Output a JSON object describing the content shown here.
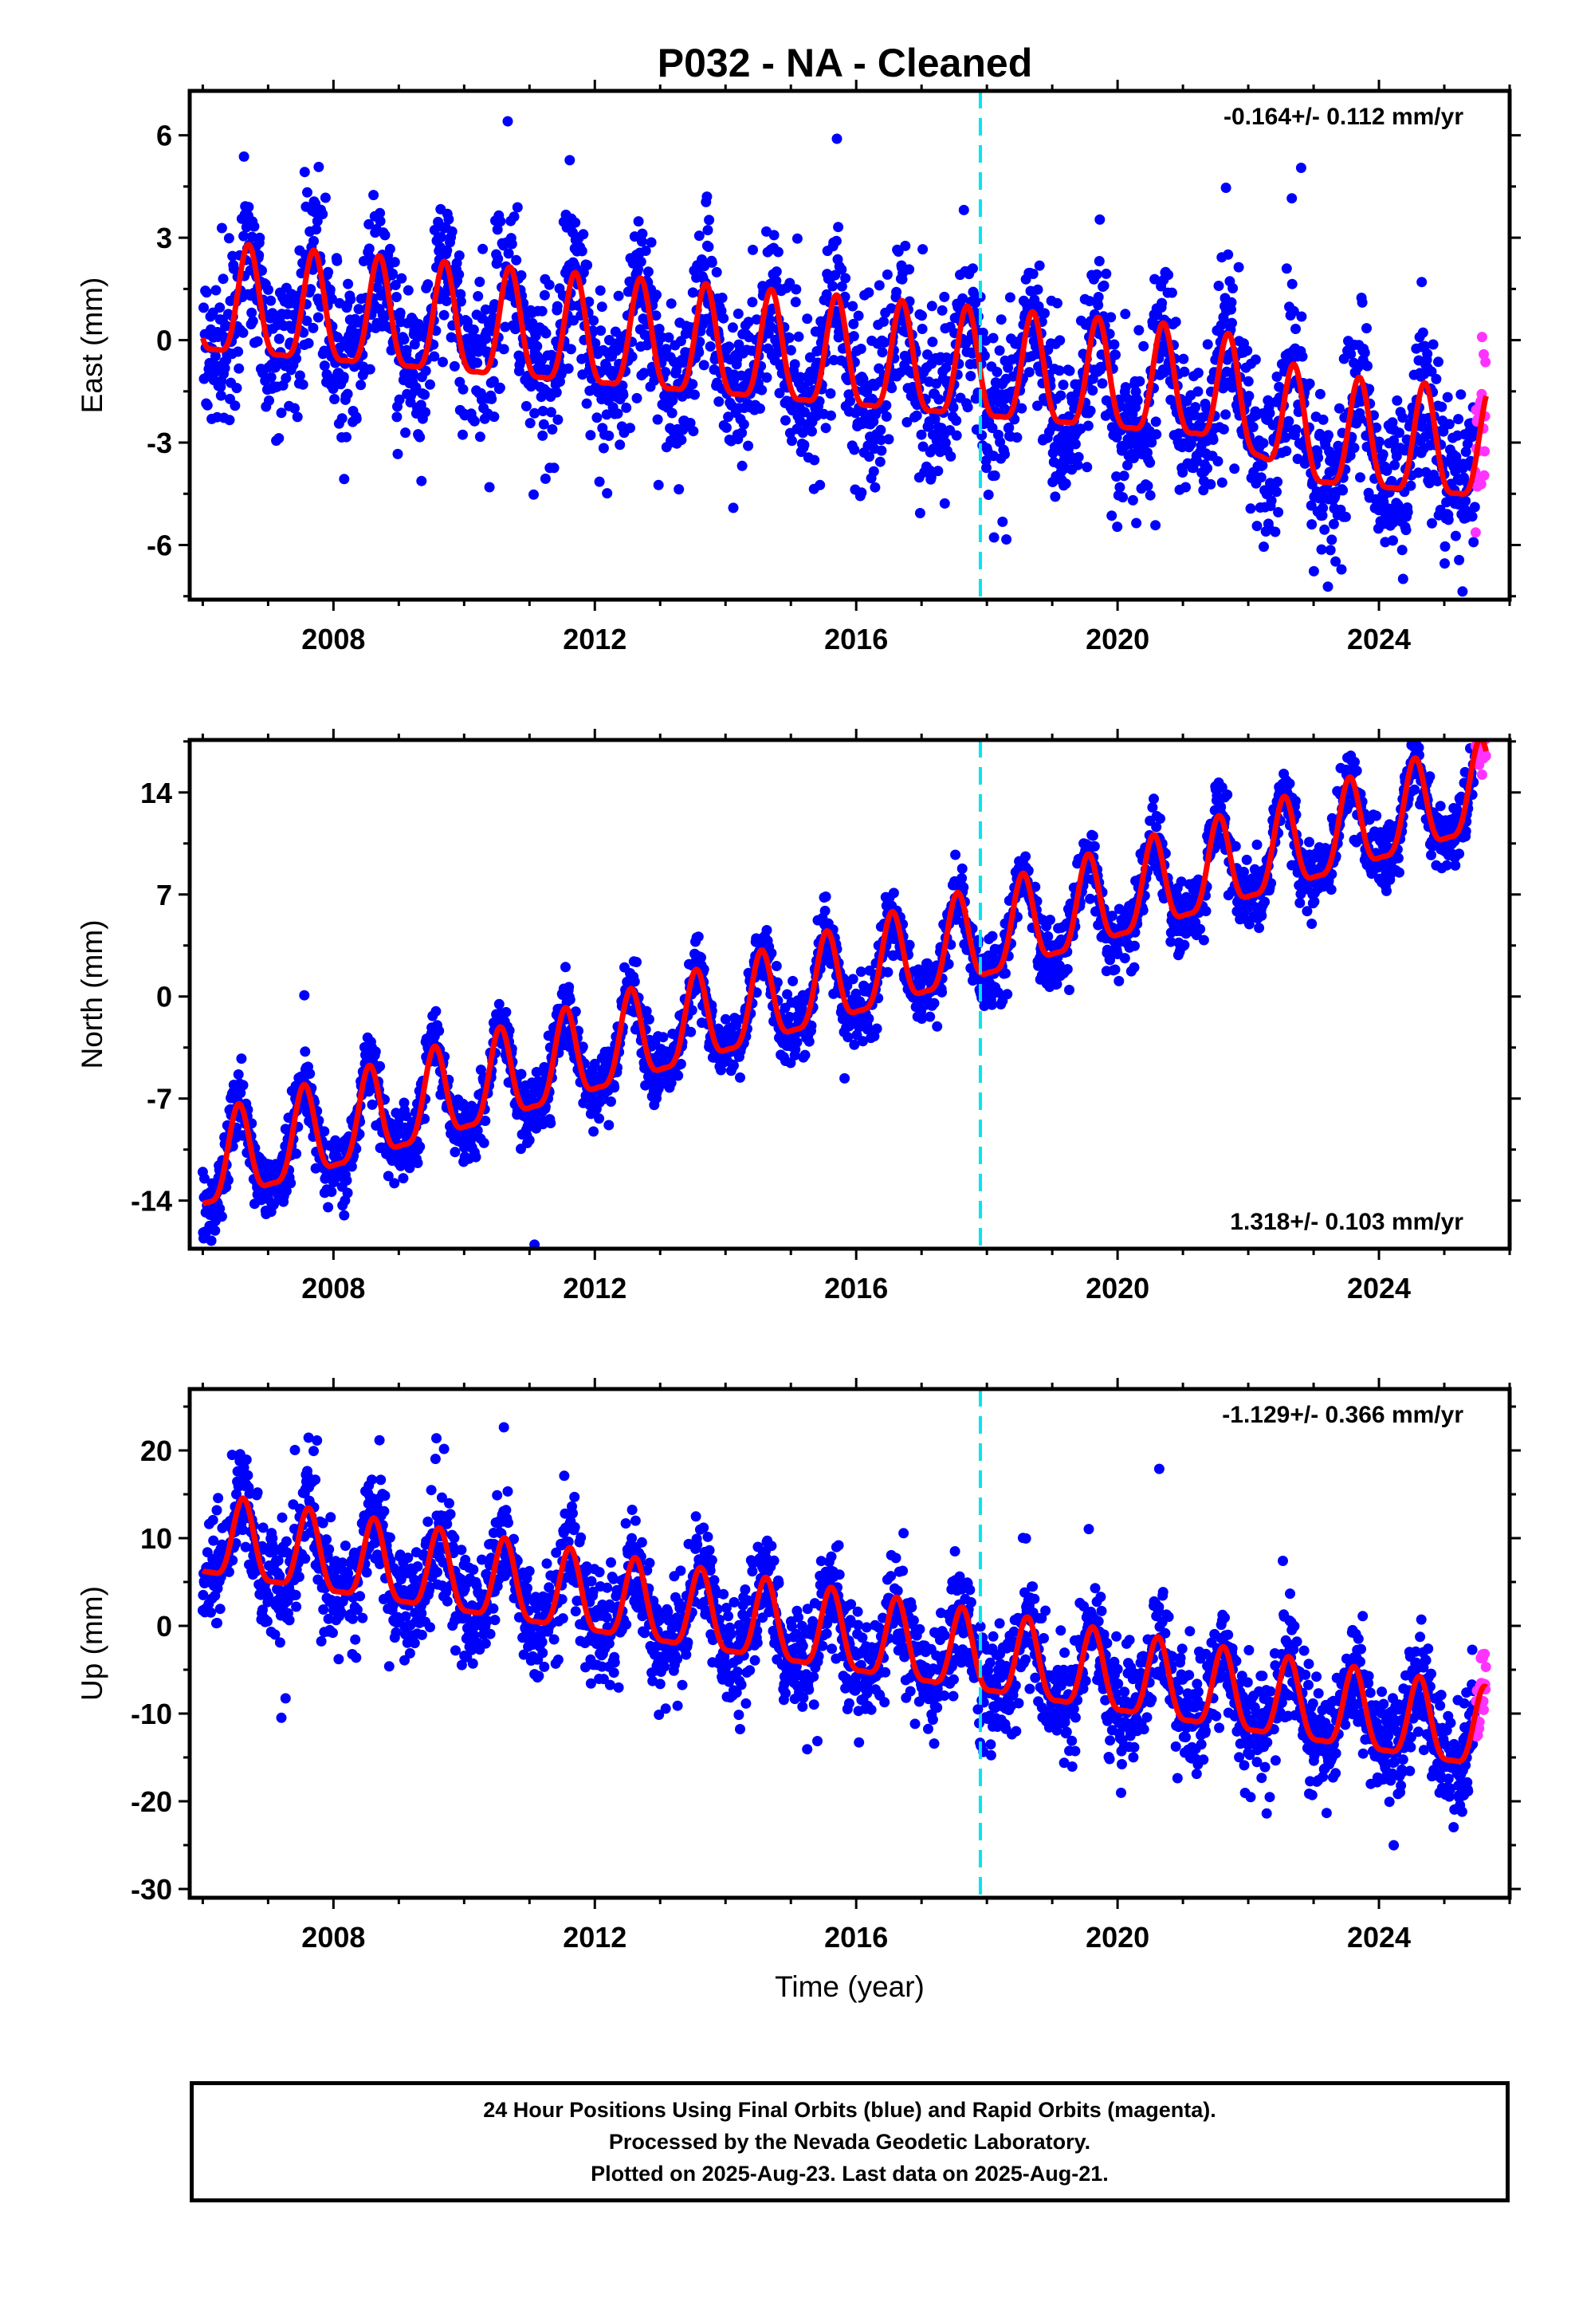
{
  "title": "P032  - NA - Cleaned",
  "colors": {
    "final_points": "#0000ff",
    "rapid_points": "#ff33ff",
    "model_line": "#ff0000",
    "event_line": "#00e5ee",
    "frame": "#000000"
  },
  "chart_data": [
    {
      "type": "scatter",
      "ylabel": "East (mm)",
      "xlabel": "",
      "rate_label": "-0.164+/- 0.112 mm/yr",
      "rate_label_position": "top-right",
      "xlim": [
        2005.8,
        2026.0
      ],
      "ylim": [
        -7.6,
        7.3
      ],
      "xticks": [
        2008,
        2012,
        2016,
        2020,
        2024
      ],
      "xtick_labels": [
        "2008",
        "2012",
        "2016",
        "2020",
        "2024"
      ],
      "yticks": [
        6,
        3,
        0,
        -3,
        -6
      ],
      "ytick_labels": [
        "6",
        "3",
        "0",
        "-3",
        "-6"
      ],
      "event_line_x": 2017.9,
      "data_start": 2006.0,
      "data_end": 2025.64,
      "rapid_start": 2025.47,
      "trend": {
        "intercept_2006": 0.9,
        "slope_per_year": -0.164,
        "late_drop_after": 2021.5,
        "late_drop": -1.1
      },
      "seasonal": {
        "amplitude": 1.75,
        "peak_phase_year_fraction": 0.7
      },
      "scatter_sigma": 1.2,
      "series": [
        {
          "name": "Final Orbits (blue)",
          "role": "final_points"
        },
        {
          "name": "Rapid Orbits (magenta)",
          "role": "rapid_points"
        }
      ]
    },
    {
      "type": "scatter",
      "ylabel": "North (mm)",
      "xlabel": "",
      "rate_label": "1.318+/- 0.103 mm/yr",
      "rate_label_position": "bottom-right",
      "xlim": [
        2005.8,
        2026.0
      ],
      "ylim": [
        -17.3,
        17.6
      ],
      "xticks": [
        2008,
        2012,
        2016,
        2020,
        2024
      ],
      "xtick_labels": [
        "2008",
        "2012",
        "2016",
        "2020",
        "2024"
      ],
      "yticks": [
        14,
        7,
        0,
        -7,
        -14
      ],
      "ytick_labels": [
        "14",
        "7",
        "0",
        "-7",
        "-14"
      ],
      "event_line_x": 2017.9,
      "data_start": 2006.0,
      "data_end": 2025.64,
      "rapid_start": 2025.47,
      "trend": {
        "intercept_2006": -12.0,
        "slope_per_year": 1.318,
        "late_drop_after": 9999,
        "late_drop": 0
      },
      "seasonal": {
        "amplitude": 3.4,
        "peak_phase_year_fraction": 0.55
      },
      "scatter_sigma": 1.1,
      "series": [
        {
          "name": "Final Orbits (blue)",
          "role": "final_points"
        },
        {
          "name": "Rapid Orbits (magenta)",
          "role": "rapid_points"
        }
      ]
    },
    {
      "type": "scatter",
      "ylabel": "Up (mm)",
      "xlabel": "Time (year)",
      "rate_label": "-1.129+/- 0.366 mm/yr",
      "rate_label_position": "top-right",
      "xlim": [
        2005.8,
        2026.0
      ],
      "ylim": [
        -31,
        27
      ],
      "xticks": [
        2008,
        2012,
        2016,
        2020,
        2024
      ],
      "xtick_labels": [
        "2008",
        "2012",
        "2016",
        "2020",
        "2024"
      ],
      "yticks": [
        20,
        10,
        0,
        -10,
        -20,
        -30
      ],
      "ytick_labels": [
        "20",
        "10",
        "0",
        "-10",
        "-20",
        "-30"
      ],
      "event_line_x": 2017.9,
      "data_start": 2006.0,
      "data_end": 2025.64,
      "rapid_start": 2025.47,
      "trend": {
        "intercept_2006": 9.5,
        "slope_per_year": -1.129,
        "late_drop_after": 9999,
        "late_drop": 0
      },
      "seasonal": {
        "amplitude": 5.0,
        "peak_phase_year_fraction": 0.62
      },
      "scatter_sigma": 3.2,
      "series": [
        {
          "name": "Final Orbits (blue)",
          "role": "final_points"
        },
        {
          "name": "Rapid Orbits (magenta)",
          "role": "rapid_points"
        }
      ]
    }
  ],
  "footer": {
    "line1": "24 Hour Positions Using Final Orbits (blue) and Rapid Orbits (magenta).",
    "line2": "Processed by the Nevada Geodetic Laboratory.",
    "line3": "Plotted on 2025-Aug-23. Last data on 2025-Aug-21."
  }
}
